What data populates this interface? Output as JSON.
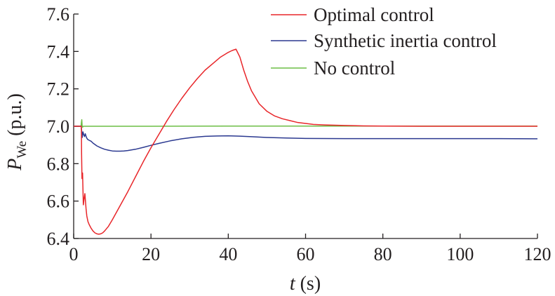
{
  "chart_data": {
    "type": "line",
    "xlabel": {
      "italic": "t",
      "rest": " (s)"
    },
    "ylabel": {
      "main": "P",
      "sub": "We",
      "rest": " (p.u.)"
    },
    "xlim": [
      0,
      120
    ],
    "ylim": [
      6.4,
      7.6
    ],
    "xticks": [
      0,
      20,
      40,
      60,
      80,
      100,
      120
    ],
    "yticks": [
      6.4,
      6.6,
      6.8,
      7.0,
      7.2,
      7.4,
      7.6
    ],
    "xtick_labels": [
      "0",
      "20",
      "40",
      "60",
      "80",
      "100",
      "120"
    ],
    "ytick_labels": [
      "6.4",
      "6.6",
      "6.8",
      "7.0",
      "7.2",
      "7.4",
      "7.6"
    ],
    "grid": false,
    "legend_position": "top-right",
    "series": [
      {
        "name": "Optimal control",
        "color": "#e8262a",
        "x": [
          0,
          1.95,
          2.0,
          2.05,
          2.15,
          2.3,
          2.5,
          2.75,
          2.9,
          3.05,
          3.2,
          3.4,
          3.7,
          4.0,
          4.5,
          5.0,
          5.5,
          6.0,
          6.5,
          7.0,
          7.5,
          8.0,
          9.0,
          10,
          12,
          14,
          16,
          18,
          20,
          22,
          24,
          26,
          28,
          30,
          32,
          34,
          36,
          38,
          40,
          41,
          42,
          43,
          44,
          45,
          46,
          48,
          50,
          52,
          54,
          56,
          58,
          60,
          62,
          65,
          70,
          75,
          80,
          90,
          100,
          110,
          120
        ],
        "y": [
          7.0,
          7.0,
          6.98,
          6.85,
          6.72,
          6.75,
          6.58,
          6.62,
          6.64,
          6.6,
          6.56,
          6.52,
          6.49,
          6.475,
          6.455,
          6.44,
          6.43,
          6.425,
          6.423,
          6.425,
          6.43,
          6.44,
          6.465,
          6.5,
          6.575,
          6.65,
          6.73,
          6.81,
          6.885,
          6.955,
          7.025,
          7.09,
          7.15,
          7.205,
          7.255,
          7.3,
          7.335,
          7.37,
          7.395,
          7.405,
          7.412,
          7.37,
          7.3,
          7.24,
          7.19,
          7.12,
          7.08,
          7.055,
          7.04,
          7.03,
          7.02,
          7.015,
          7.01,
          7.007,
          7.004,
          7.002,
          7.001,
          7.0,
          7.0,
          7.0,
          7.0
        ]
      },
      {
        "name": "Synthetic inertia control",
        "color": "#2b3990",
        "x": [
          0,
          1.95,
          2.05,
          2.2,
          2.4,
          2.6,
          2.8,
          3.0,
          3.3,
          3.6,
          4.0,
          4.5,
          5.0,
          6.0,
          7.0,
          8.0,
          9.0,
          10,
          11,
          12,
          13,
          14,
          16,
          18,
          20,
          22,
          25,
          28,
          31,
          34,
          37,
          40,
          43,
          46,
          50,
          55,
          60,
          70,
          80,
          90,
          100,
          110,
          120
        ],
        "y": [
          7.0,
          7.0,
          6.98,
          6.94,
          6.97,
          6.955,
          6.945,
          6.96,
          6.94,
          6.93,
          6.925,
          6.92,
          6.91,
          6.895,
          6.885,
          6.877,
          6.872,
          6.868,
          6.867,
          6.867,
          6.868,
          6.87,
          6.877,
          6.887,
          6.898,
          6.908,
          6.922,
          6.933,
          6.941,
          6.946,
          6.948,
          6.949,
          6.947,
          6.944,
          6.94,
          6.937,
          6.935,
          6.934,
          6.934,
          6.934,
          6.934,
          6.934,
          6.933
        ]
      },
      {
        "name": "No control",
        "color": "#6cbe45",
        "x": [
          0,
          1.9,
          2.0,
          2.1,
          2.2,
          2.3,
          2.5,
          2.8,
          3.2,
          4.0,
          10,
          20,
          40,
          60,
          80,
          100,
          120
        ],
        "y": [
          7.0,
          7.0,
          7.02,
          7.035,
          7.0,
          6.995,
          7.0,
          7.0,
          7.0,
          7.0,
          7.0,
          7.0,
          7.001,
          7.001,
          7.001,
          7.001,
          7.001
        ]
      }
    ]
  }
}
